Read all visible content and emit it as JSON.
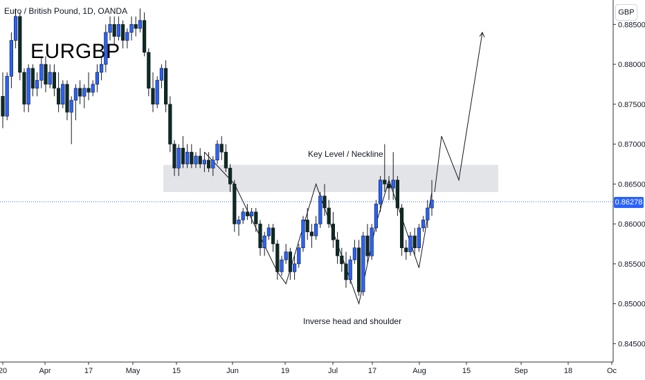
{
  "header": {
    "title": "Euro / British Pound, 1D, OANDA",
    "symbol_label": "EURGBP",
    "currency": "GBP"
  },
  "annotations": {
    "neckline": "Key Level / Neckline",
    "pattern": "Inverse head and shoulder"
  },
  "last_price": "0.86278",
  "colors": {
    "up": "#2962ff",
    "down": "#0d2b22",
    "zone": "#e3e4e8",
    "dotted_line": "#2962ff"
  },
  "chart_data": {
    "type": "candlestick",
    "title": "Euro / British Pound, 1D, OANDA",
    "y_axis": {
      "side": "right",
      "range": [
        0.842,
        0.887
      ],
      "ticks": [
        "0.88500",
        "0.88000",
        "0.87500",
        "0.87000",
        "0.86500",
        "0.86000",
        "0.85500",
        "0.85000",
        "0.84500"
      ]
    },
    "x_axis_labels": [
      "20",
      "Apr",
      "17",
      "May",
      "15",
      "Jun",
      "19",
      "Jul",
      "17",
      "Aug",
      "15",
      "Sep",
      "18",
      "Oc"
    ],
    "current_price": 0.86278,
    "key_level_zone": {
      "low": 0.864,
      "high": 0.8674
    },
    "candles": [
      [
        0.876,
        0.879,
        0.872,
        0.8735
      ],
      [
        0.8735,
        0.879,
        0.873,
        0.8785
      ],
      [
        0.8785,
        0.884,
        0.877,
        0.883
      ],
      [
        0.883,
        0.887,
        0.882,
        0.886
      ],
      [
        0.886,
        0.8865,
        0.878,
        0.879
      ],
      [
        0.879,
        0.8795,
        0.874,
        0.875
      ],
      [
        0.875,
        0.88,
        0.874,
        0.8795
      ],
      [
        0.8795,
        0.88,
        0.876,
        0.877
      ],
      [
        0.877,
        0.879,
        0.876,
        0.878
      ],
      [
        0.878,
        0.881,
        0.877,
        0.88
      ],
      [
        0.88,
        0.881,
        0.8765,
        0.8775
      ],
      [
        0.8775,
        0.88,
        0.877,
        0.879
      ],
      [
        0.879,
        0.88,
        0.876,
        0.877
      ],
      [
        0.877,
        0.879,
        0.874,
        0.875
      ],
      [
        0.875,
        0.878,
        0.8745,
        0.8775
      ],
      [
        0.8775,
        0.878,
        0.873,
        0.874
      ],
      [
        0.874,
        0.876,
        0.87,
        0.8755
      ],
      [
        0.8755,
        0.8775,
        0.873,
        0.877
      ],
      [
        0.877,
        0.878,
        0.875,
        0.876
      ],
      [
        0.876,
        0.8775,
        0.8745,
        0.877
      ],
      [
        0.877,
        0.879,
        0.8755,
        0.8765
      ],
      [
        0.8765,
        0.878,
        0.876,
        0.8775
      ],
      [
        0.8775,
        0.88,
        0.8765,
        0.879
      ],
      [
        0.879,
        0.881,
        0.878,
        0.88
      ],
      [
        0.88,
        0.885,
        0.879,
        0.884
      ],
      [
        0.884,
        0.886,
        0.883,
        0.885
      ],
      [
        0.885,
        0.886,
        0.8825,
        0.8835
      ],
      [
        0.8835,
        0.886,
        0.883,
        0.885
      ],
      [
        0.885,
        0.8855,
        0.882,
        0.883
      ],
      [
        0.883,
        0.8845,
        0.882,
        0.884
      ],
      [
        0.884,
        0.886,
        0.883,
        0.885
      ],
      [
        0.885,
        0.886,
        0.8835,
        0.8845
      ],
      [
        0.8845,
        0.887,
        0.884,
        0.8855
      ],
      [
        0.8855,
        0.8865,
        0.881,
        0.8815
      ],
      [
        0.8815,
        0.882,
        0.876,
        0.877
      ],
      [
        0.877,
        0.879,
        0.874,
        0.875
      ],
      [
        0.875,
        0.8785,
        0.8745,
        0.878
      ],
      [
        0.878,
        0.88,
        0.877,
        0.8795
      ],
      [
        0.8795,
        0.8805,
        0.874,
        0.875
      ],
      [
        0.875,
        0.876,
        0.869,
        0.87
      ],
      [
        0.87,
        0.8705,
        0.866,
        0.867
      ],
      [
        0.867,
        0.87,
        0.866,
        0.8695
      ],
      [
        0.8695,
        0.871,
        0.867,
        0.8675
      ],
      [
        0.8675,
        0.87,
        0.867,
        0.869
      ],
      [
        0.869,
        0.87,
        0.867,
        0.8675
      ],
      [
        0.8675,
        0.869,
        0.867,
        0.8685
      ],
      [
        0.8685,
        0.8695,
        0.867,
        0.8675
      ],
      [
        0.8675,
        0.869,
        0.8665,
        0.868
      ],
      [
        0.868,
        0.869,
        0.8665,
        0.867
      ],
      [
        0.867,
        0.8685,
        0.866,
        0.868
      ],
      [
        0.868,
        0.8705,
        0.8675,
        0.87
      ],
      [
        0.87,
        0.871,
        0.868,
        0.869
      ],
      [
        0.869,
        0.87,
        0.8665,
        0.867
      ],
      [
        0.867,
        0.8675,
        0.864,
        0.865
      ],
      [
        0.865,
        0.8655,
        0.859,
        0.86
      ],
      [
        0.86,
        0.861,
        0.8585,
        0.8605
      ],
      [
        0.8605,
        0.862,
        0.86,
        0.8615
      ],
      [
        0.8615,
        0.8625,
        0.8605,
        0.861
      ],
      [
        0.861,
        0.862,
        0.86,
        0.8615
      ],
      [
        0.8615,
        0.862,
        0.859,
        0.86
      ],
      [
        0.86,
        0.8605,
        0.856,
        0.857
      ],
      [
        0.857,
        0.859,
        0.856,
        0.8585
      ],
      [
        0.8585,
        0.86,
        0.858,
        0.8595
      ],
      [
        0.8595,
        0.86,
        0.8565,
        0.8575
      ],
      [
        0.8575,
        0.858,
        0.853,
        0.854
      ],
      [
        0.854,
        0.856,
        0.8535,
        0.8555
      ],
      [
        0.8555,
        0.8575,
        0.855,
        0.8565
      ],
      [
        0.8565,
        0.857,
        0.853,
        0.854
      ],
      [
        0.854,
        0.856,
        0.853,
        0.855
      ],
      [
        0.855,
        0.8575,
        0.8545,
        0.857
      ],
      [
        0.857,
        0.861,
        0.8565,
        0.8605
      ],
      [
        0.8605,
        0.862,
        0.858,
        0.859
      ],
      [
        0.859,
        0.86,
        0.857,
        0.8585
      ],
      [
        0.8585,
        0.861,
        0.858,
        0.86
      ],
      [
        0.86,
        0.864,
        0.8595,
        0.8635
      ],
      [
        0.8635,
        0.865,
        0.861,
        0.862
      ],
      [
        0.862,
        0.863,
        0.8595,
        0.86
      ],
      [
        0.86,
        0.8615,
        0.857,
        0.858
      ],
      [
        0.858,
        0.859,
        0.855,
        0.856
      ],
      [
        0.856,
        0.857,
        0.854,
        0.855
      ],
      [
        0.855,
        0.8565,
        0.852,
        0.853
      ],
      [
        0.853,
        0.856,
        0.8525,
        0.8555
      ],
      [
        0.8555,
        0.858,
        0.855,
        0.857
      ],
      [
        0.857,
        0.858,
        0.851,
        0.8515
      ],
      [
        0.8515,
        0.859,
        0.851,
        0.8585
      ],
      [
        0.8585,
        0.86,
        0.855,
        0.856
      ],
      [
        0.856,
        0.86,
        0.8555,
        0.8595
      ],
      [
        0.8595,
        0.863,
        0.859,
        0.8625
      ],
      [
        0.8625,
        0.866,
        0.8615,
        0.8655
      ],
      [
        0.8655,
        0.87,
        0.864,
        0.865
      ],
      [
        0.865,
        0.866,
        0.863,
        0.8645
      ],
      [
        0.8645,
        0.869,
        0.863,
        0.8655
      ],
      [
        0.8655,
        0.866,
        0.861,
        0.862
      ],
      [
        0.862,
        0.8625,
        0.856,
        0.857
      ],
      [
        0.857,
        0.858,
        0.8555,
        0.8565
      ],
      [
        0.8565,
        0.859,
        0.856,
        0.8585
      ],
      [
        0.8585,
        0.8595,
        0.856,
        0.857
      ],
      [
        0.857,
        0.86,
        0.8565,
        0.8595
      ],
      [
        0.8595,
        0.861,
        0.859,
        0.8605
      ],
      [
        0.8605,
        0.863,
        0.8595,
        0.862
      ],
      [
        0.862,
        0.8655,
        0.861,
        0.863
      ]
    ],
    "projection_path": [
      [
        0.864,
        0.871
      ],
      [
        0.871,
        0.8655
      ],
      [
        0.8655,
        0.884
      ]
    ],
    "pattern_line": [
      0.869,
      0.865,
      0.854,
      0.8525,
      0.865,
      0.85,
      0.86,
      0.8655,
      0.8545,
      0.864
    ],
    "grid": false,
    "legend": "none"
  }
}
